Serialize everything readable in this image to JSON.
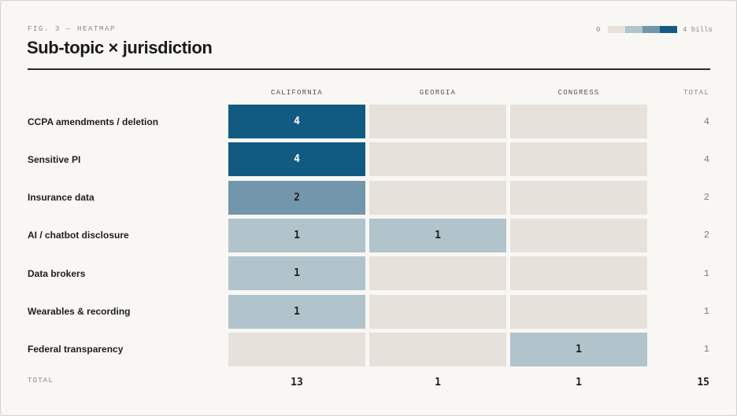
{
  "figure_label": "FIG. 3 — HEATMAP",
  "title": "Sub-topic × jurisdiction",
  "legend": {
    "min_label": "0",
    "max_label": "4 bills",
    "colors": [
      "#e6e1da",
      "#b1c3cb",
      "#7296ac",
      "#115b82"
    ]
  },
  "chart_data": {
    "type": "heatmap",
    "title": "Sub-topic × jurisdiction",
    "columns": [
      "CALIFORNIA",
      "GEORGIA",
      "CONGRESS"
    ],
    "rows": [
      "CCPA amendments / deletion",
      "Sensitive PI",
      "Insurance data",
      "AI / chatbot disclosure",
      "Data brokers",
      "Wearables & recording",
      "Federal transparency"
    ],
    "values": [
      [
        4,
        0,
        0
      ],
      [
        4,
        0,
        0
      ],
      [
        2,
        0,
        0
      ],
      [
        1,
        1,
        0
      ],
      [
        1,
        0,
        0
      ],
      [
        1,
        0,
        0
      ],
      [
        0,
        0,
        1
      ]
    ],
    "total_header": "TOTAL",
    "total_row_label": "TOTAL",
    "row_totals": [
      "4",
      "4",
      "2",
      "2",
      "1",
      "1",
      "1"
    ],
    "column_totals": [
      "13",
      "1",
      "1"
    ],
    "grand_total": "15",
    "scale_range": [
      0,
      4
    ],
    "color_scale": {
      "0": "#e6e1da",
      "1": "#b1c3cb",
      "2": "#7296ac",
      "4": "#115b82"
    }
  }
}
